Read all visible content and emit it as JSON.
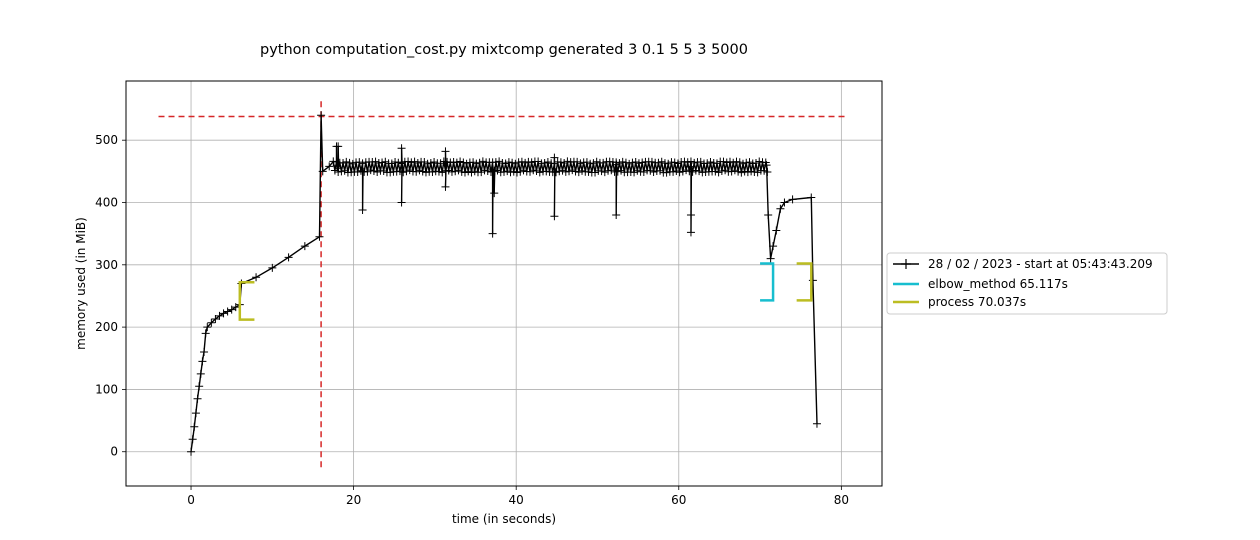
{
  "chart_data": {
    "type": "line",
    "title": "python computation_cost.py mixtcomp generated 3 0.1 5 5 3 5000",
    "xlabel": "time (in seconds)",
    "ylabel": "memory used (in MiB)",
    "xlim": [
      -8,
      85
    ],
    "ylim": [
      -55,
      595
    ],
    "xticks": [
      0,
      20,
      40,
      60,
      80
    ],
    "yticks": [
      0,
      100,
      200,
      300,
      400,
      500
    ],
    "grid": true,
    "legend_position": "outside-right",
    "series": [
      {
        "name": "28 / 02 / 2023 - start at 05:43:43.209",
        "color": "#000000",
        "marker": "+",
        "profile": [
          [
            0.0,
            0
          ],
          [
            0.2,
            20
          ],
          [
            0.4,
            40
          ],
          [
            0.6,
            62
          ],
          [
            0.8,
            85
          ],
          [
            1.0,
            105
          ],
          [
            1.2,
            125
          ],
          [
            1.4,
            145
          ],
          [
            1.6,
            160
          ],
          [
            1.8,
            190
          ],
          [
            2.0,
            200
          ],
          [
            2.5,
            207
          ],
          [
            3.0,
            213
          ],
          [
            3.5,
            218
          ],
          [
            4.0,
            222
          ],
          [
            4.5,
            225
          ],
          [
            5.0,
            228
          ],
          [
            5.5,
            232
          ],
          [
            6.0,
            236
          ],
          [
            6.2,
            270
          ],
          [
            8.0,
            280
          ],
          [
            10.0,
            295
          ],
          [
            12.0,
            312
          ],
          [
            14.0,
            330
          ],
          [
            15.8,
            345
          ],
          [
            16.0,
            540
          ],
          [
            16.2,
            450
          ],
          [
            17.0,
            458
          ],
          [
            18.0,
            460
          ],
          [
            70.8,
            460
          ],
          [
            71.0,
            380
          ],
          [
            71.3,
            310
          ],
          [
            71.6,
            330
          ],
          [
            72.0,
            355
          ],
          [
            72.5,
            390
          ],
          [
            73.0,
            400
          ],
          [
            74.0,
            405
          ],
          [
            76.3,
            408
          ],
          [
            76.5,
            275
          ],
          [
            77.0,
            45
          ]
        ],
        "band": {
          "from": 17.5,
          "to": 71.0,
          "low": 448,
          "high": 466
        },
        "spikes": [
          {
            "x": 18.0,
            "y": 490
          },
          {
            "x": 21.0,
            "y": 388
          },
          {
            "x": 25.8,
            "y": 487
          },
          {
            "x": 25.8,
            "y": 400
          },
          {
            "x": 31.2,
            "y": 482
          },
          {
            "x": 31.2,
            "y": 425
          },
          {
            "x": 37.2,
            "y": 350
          },
          {
            "x": 37.3,
            "y": 415
          },
          {
            "x": 44.8,
            "y": 472
          },
          {
            "x": 44.8,
            "y": 378
          },
          {
            "x": 52.3,
            "y": 380
          },
          {
            "x": 61.5,
            "y": 352
          },
          {
            "x": 61.6,
            "y": 380
          }
        ]
      }
    ],
    "annotations": [
      {
        "label": "elbow_method 65.117s",
        "color": "#17becf",
        "kind": "bracket",
        "x_start": 70.0,
        "x_end": 71.6,
        "y_low": 243,
        "y_high": 302
      },
      {
        "label": "process 70.037s",
        "color": "#bcbd22",
        "kind": "bracket",
        "x_start": 6.0,
        "x_end": 7.8,
        "y_low": 212,
        "y_high": 272
      },
      {
        "kind": "bracket",
        "color": "#bcbd22",
        "x_start": 74.5,
        "x_end": 76.3,
        "y_low": 243,
        "y_high": 302
      }
    ],
    "reference_lines": [
      {
        "kind": "horizontal",
        "y": 538,
        "x_from": -4,
        "x_to": 80.5,
        "color": "#d62728",
        "style": "dashed"
      },
      {
        "kind": "vertical",
        "x": 16,
        "y_from": -25,
        "y_to": 565,
        "color": "#d62728",
        "style": "dashed"
      }
    ]
  }
}
